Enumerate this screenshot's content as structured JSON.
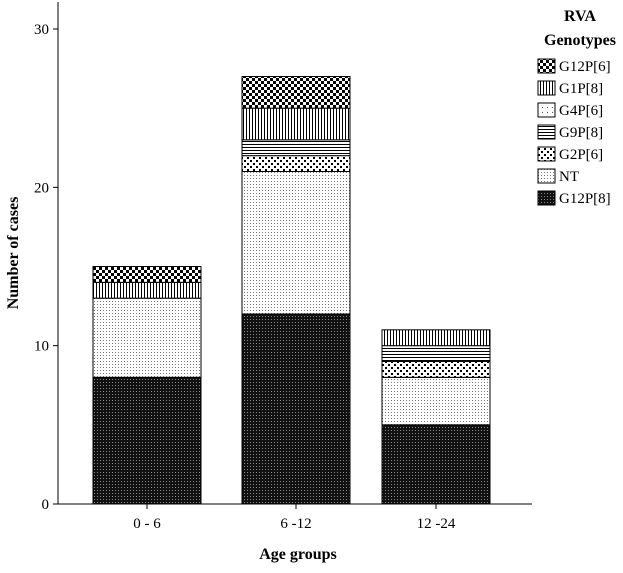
{
  "chart_data": {
    "type": "bar",
    "stacked": true,
    "categories": [
      "0 - 6",
      "6 -12",
      "12 -24"
    ],
    "series": [
      {
        "name": "G12P[8]",
        "pattern": "dense-dots",
        "values": [
          8,
          12,
          5
        ]
      },
      {
        "name": "NT",
        "pattern": "fine-dots",
        "values": [
          5,
          9,
          3
        ]
      },
      {
        "name": "G2P[6]",
        "pattern": "cross-dots",
        "values": [
          0,
          1,
          1
        ]
      },
      {
        "name": "G9P[8]",
        "pattern": "horizontal-lines",
        "values": [
          0,
          1,
          1
        ]
      },
      {
        "name": "G4P[6]",
        "pattern": "sparse-dots",
        "values": [
          0,
          0,
          0
        ]
      },
      {
        "name": "G1P[8]",
        "pattern": "vertical-lines",
        "values": [
          1,
          2,
          1
        ]
      },
      {
        "name": "G12P[6]",
        "pattern": "checker",
        "values": [
          1,
          2,
          0
        ]
      }
    ],
    "legend_order": [
      "G12P[6]",
      "G1P[8]",
      "G4P[6]",
      "G9P[8]",
      "G2P[6]",
      "NT",
      "G12P[8]"
    ],
    "legend_title": [
      "RVA",
      "Genotypes"
    ],
    "legend_position": "top-right",
    "xlabel": "Age groups",
    "ylabel": "Number of cases",
    "ylim": [
      0,
      32
    ],
    "yticks": [
      0,
      10,
      20,
      30
    ],
    "grid": false,
    "colors": {
      "ink": "#000000",
      "background": "#ffffff"
    }
  }
}
